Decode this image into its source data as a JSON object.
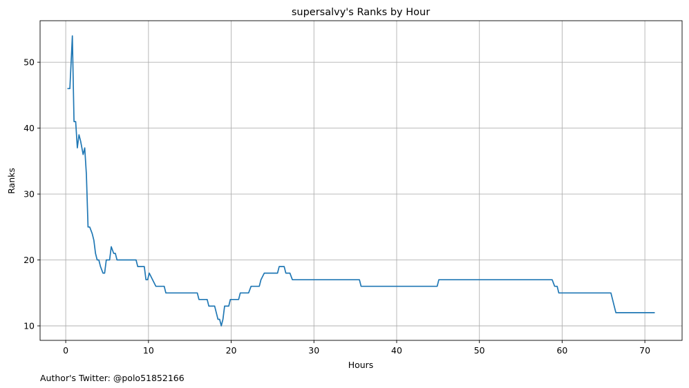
{
  "chart_data": {
    "type": "line",
    "title": "supersalvy's Ranks by Hour",
    "xlabel": "Hours",
    "ylabel": "Ranks",
    "xlim": [
      -3.1,
      74.5
    ],
    "ylim": [
      7.8,
      56.3
    ],
    "xticks": [
      0,
      10,
      20,
      30,
      40,
      50,
      60,
      70
    ],
    "yticks": [
      10,
      20,
      30,
      40,
      50
    ],
    "grid": true,
    "line_color": "#1f77b4",
    "series": [
      {
        "x": [
          0.2,
          0.5,
          0.8,
          1.0,
          1.2,
          1.4,
          1.6,
          1.8,
          2.1,
          2.3,
          2.5,
          2.7,
          2.9,
          3.2,
          3.4,
          3.6,
          3.8,
          4.0,
          4.2,
          4.5,
          4.7,
          4.9,
          5.1,
          5.3,
          5.5,
          5.8,
          6.0,
          6.2,
          6.4,
          6.6,
          6.8,
          7.0,
          8.5,
          8.7,
          9.5,
          9.7,
          9.9,
          10.1,
          10.5,
          10.9,
          11.9,
          12.1,
          15.9,
          16.1,
          17.1,
          17.3,
          18.0,
          18.2,
          18.4,
          18.6,
          18.8,
          19.0,
          19.2,
          19.4,
          19.7,
          19.9,
          20.1,
          20.9,
          21.1,
          22.1,
          22.4,
          23.4,
          23.6,
          24.0,
          25.6,
          25.8,
          26.4,
          26.6,
          27.1,
          27.4,
          35.5,
          35.7,
          44.9,
          45.1,
          58.8,
          59.1,
          59.4,
          59.6,
          65.9,
          66.1,
          66.3,
          66.5,
          71.2
        ],
        "y": [
          46,
          46,
          54,
          41,
          41,
          37,
          39,
          38,
          36,
          37,
          33,
          25,
          25,
          24,
          23,
          21,
          20,
          20,
          19,
          18,
          18,
          20,
          20,
          20,
          22,
          21,
          21,
          20,
          20,
          20,
          20,
          20,
          20,
          19,
          19,
          17,
          17,
          18,
          17,
          16,
          16,
          15,
          15,
          14,
          14,
          13,
          13,
          12,
          11,
          11,
          10,
          11,
          13,
          13,
          13,
          14,
          14,
          14,
          15,
          15,
          16,
          16,
          17,
          18,
          18,
          19,
          19,
          18,
          18,
          17,
          17,
          16,
          16,
          17,
          17,
          16,
          16,
          15,
          15,
          14,
          13,
          12,
          12
        ]
      }
    ],
    "footnote": "Author's Twitter: @polo51852166"
  }
}
